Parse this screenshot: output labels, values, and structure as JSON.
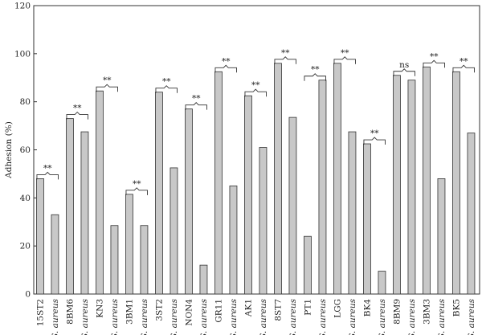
{
  "chart_data": {
    "type": "bar",
    "ylabel": "Adhesion (%)",
    "ylim": [
      0,
      120
    ],
    "yticks": [
      0,
      20,
      40,
      60,
      80,
      100,
      120
    ],
    "bar_color": "#c8c8c8",
    "edge_color": "#333333",
    "categories": [
      "15ST2",
      "S. aureus",
      "8BM6",
      "S. aureus",
      "KN3",
      "S. aureus",
      "3BM1",
      "S. aureus",
      "3ST2",
      "S. aureus",
      "NON4",
      "S. aureus",
      "GR11",
      "S. aureus",
      "AK1",
      "S. aureus",
      "8ST7",
      "S. aureus",
      "PT1",
      "S. aureus",
      "LGG",
      "S. aureus",
      "BK4",
      "S. aureus",
      "8BM9",
      "S. aureus",
      "3BM3",
      "S. aureus",
      "BK5",
      "S. aureus"
    ],
    "italic_categories": [
      false,
      true,
      false,
      true,
      false,
      true,
      false,
      true,
      false,
      true,
      false,
      true,
      false,
      true,
      false,
      true,
      false,
      true,
      false,
      true,
      false,
      true,
      false,
      true,
      false,
      true,
      false,
      true,
      false,
      true
    ],
    "values": [
      48,
      33,
      73,
      67.5,
      84.5,
      28.5,
      41.5,
      28.5,
      84,
      52.5,
      77,
      12,
      92.5,
      45,
      82.5,
      61,
      96,
      73.5,
      24,
      89,
      96,
      67.5,
      62.5,
      9.5,
      91,
      89,
      94.5,
      48,
      92.5,
      67
    ],
    "annotations": [
      {
        "pair": [
          0,
          1
        ],
        "label": "**"
      },
      {
        "pair": [
          2,
          3
        ],
        "label": "**"
      },
      {
        "pair": [
          4,
          5
        ],
        "label": "**"
      },
      {
        "pair": [
          6,
          7
        ],
        "label": "**"
      },
      {
        "pair": [
          8,
          9
        ],
        "label": "**"
      },
      {
        "pair": [
          10,
          11
        ],
        "label": "**"
      },
      {
        "pair": [
          12,
          13
        ],
        "label": "**"
      },
      {
        "pair": [
          14,
          15
        ],
        "label": "**"
      },
      {
        "pair": [
          16,
          17
        ],
        "label": "**"
      },
      {
        "pair": [
          18,
          19
        ],
        "label": "**"
      },
      {
        "pair": [
          20,
          21
        ],
        "label": "**"
      },
      {
        "pair": [
          22,
          23
        ],
        "label": "**"
      },
      {
        "pair": [
          24,
          25
        ],
        "label": "ns"
      },
      {
        "pair": [
          26,
          27
        ],
        "label": "**"
      },
      {
        "pair": [
          28,
          29
        ],
        "label": "**"
      }
    ]
  }
}
